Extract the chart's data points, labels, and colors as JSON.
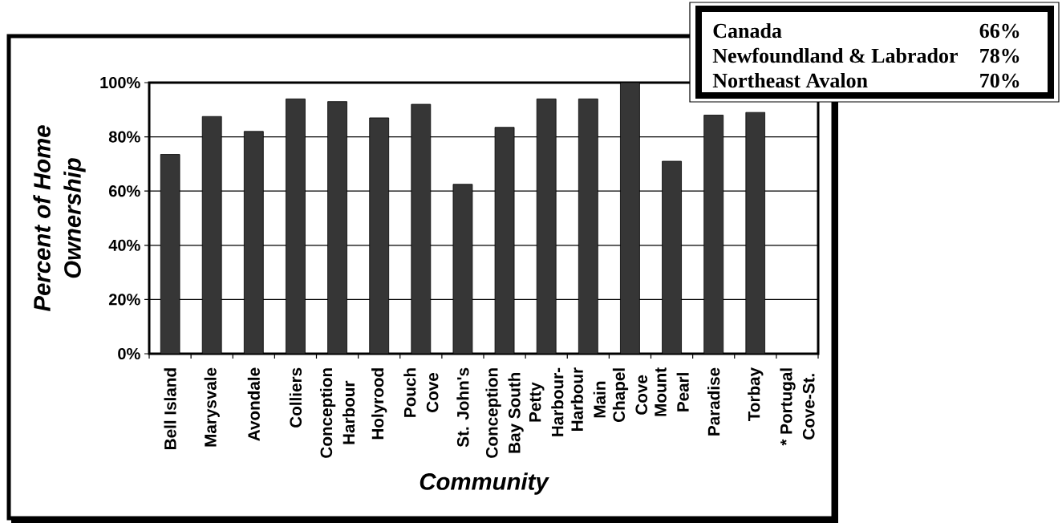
{
  "chart_data": {
    "type": "bar",
    "xlabel": "Community",
    "ylabel": "Percent of Home Ownership",
    "categories": [
      "Bell Island",
      "Marysvale",
      "Avondale",
      "Colliers",
      "Conception Harbour",
      "Holyrood",
      "Pouch Cove",
      "St. John's",
      "Conception Bay South",
      "Petty Harbour-",
      "Harbour Main",
      "Chapel Cove",
      "Mount Pearl",
      "Paradise",
      "Torbay",
      "* Portugal Cove-St."
    ],
    "values": [
      73.5,
      87.5,
      82,
      94,
      93,
      87,
      92,
      62.5,
      83.5,
      94,
      94,
      100,
      71,
      88,
      89,
      null
    ],
    "color": "#363636",
    "ylim": [
      0,
      100
    ],
    "yticks": [
      {
        "value": 0,
        "label": "0%"
      },
      {
        "value": 20,
        "label": "20%"
      },
      {
        "value": 40,
        "label": "40%"
      },
      {
        "value": 60,
        "label": "60%"
      },
      {
        "value": 80,
        "label": "80%"
      },
      {
        "value": 100,
        "label": "100%"
      }
    ],
    "grid": "y",
    "annotations": [
      "Canada",
      "66%",
      "Newfoundland & Labrador",
      "78%",
      "Northeast Avalon",
      "70%"
    ]
  }
}
